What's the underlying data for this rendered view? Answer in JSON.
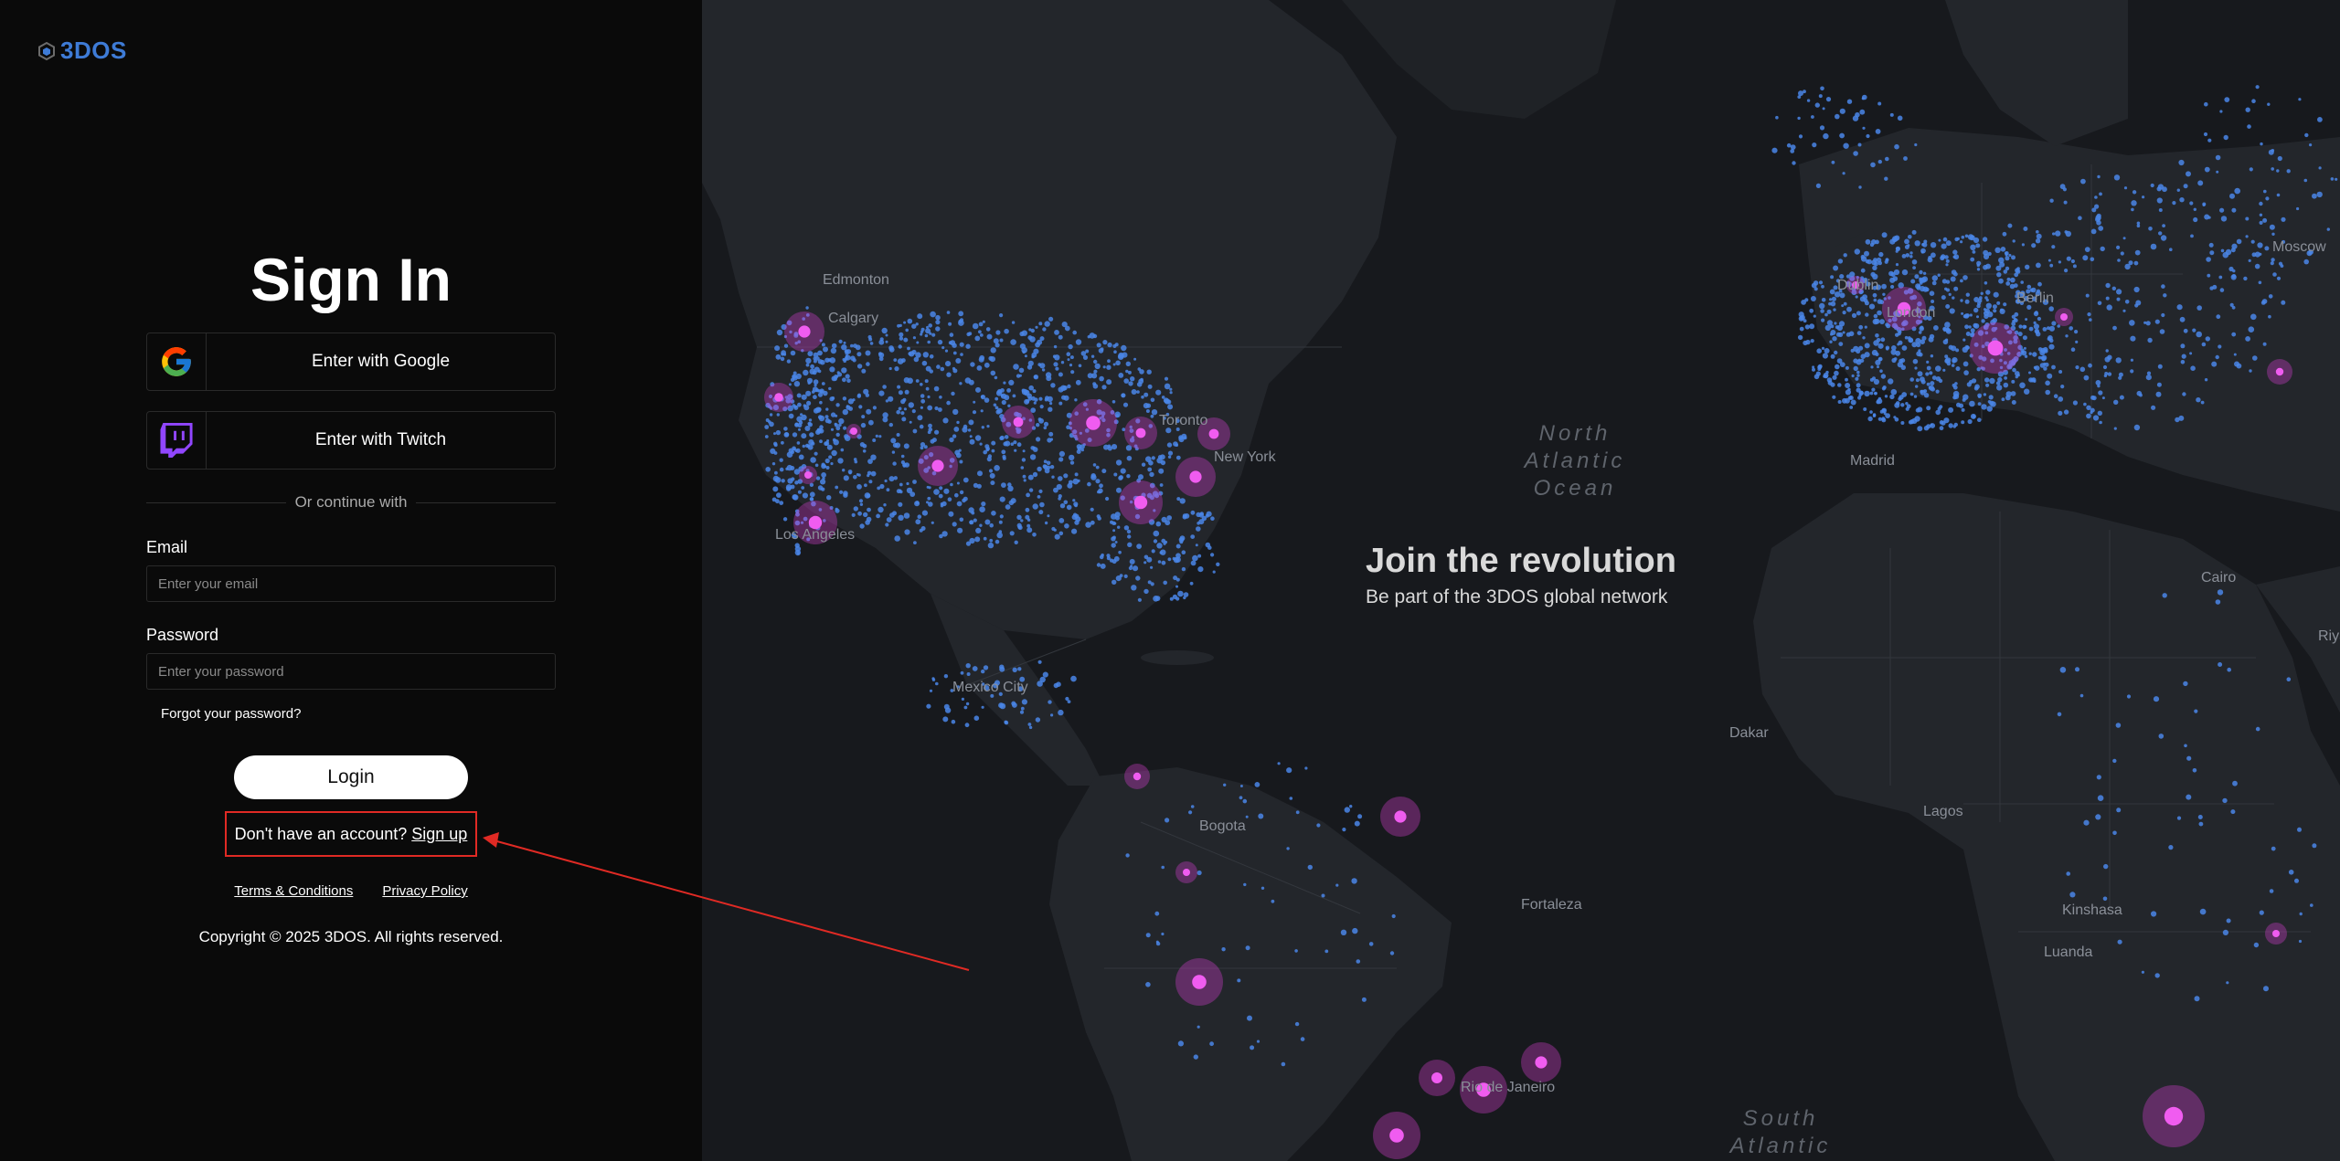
{
  "brand": {
    "logo_text": "3DOS"
  },
  "signin": {
    "title": "Sign In",
    "google_label": "Enter with Google",
    "twitch_label": "Enter with Twitch",
    "divider_text": "Or continue with",
    "email_label": "Email",
    "email_placeholder": "Enter your email",
    "password_label": "Password",
    "password_placeholder": "Enter your password",
    "forgot_label": "Forgot your password?",
    "login_label": "Login",
    "signup_prompt": "Don't have an account?",
    "signup_link": "Sign up"
  },
  "footer": {
    "terms": "Terms & Conditions",
    "privacy": "Privacy Policy",
    "copyright": "Copyright © 2025 3DOS. All rights reserved."
  },
  "hero": {
    "title": "Join the revolution",
    "subtitle": "Be part of the 3DOS global network"
  },
  "map": {
    "cities": [
      "Edmonton",
      "Calgary",
      "Los Angeles",
      "Mexico City",
      "Bogota",
      "Fortaleza",
      "Rio de Janeiro",
      "Madrid",
      "Berlin",
      "Moscow",
      "Cairo",
      "Dakar",
      "Lagos",
      "Kinshasa",
      "Luanda",
      "Riyadh",
      "Toronto",
      "New York",
      "London",
      "Dublin"
    ],
    "oceans": [
      "North Atlantic Ocean",
      "South Atlantic"
    ]
  },
  "colors": {
    "accent_blue": "#3e7bd6",
    "node_blue": "#4a86e8",
    "hub_magenta": "#d63fd0",
    "annotation_red": "#e02a24"
  }
}
